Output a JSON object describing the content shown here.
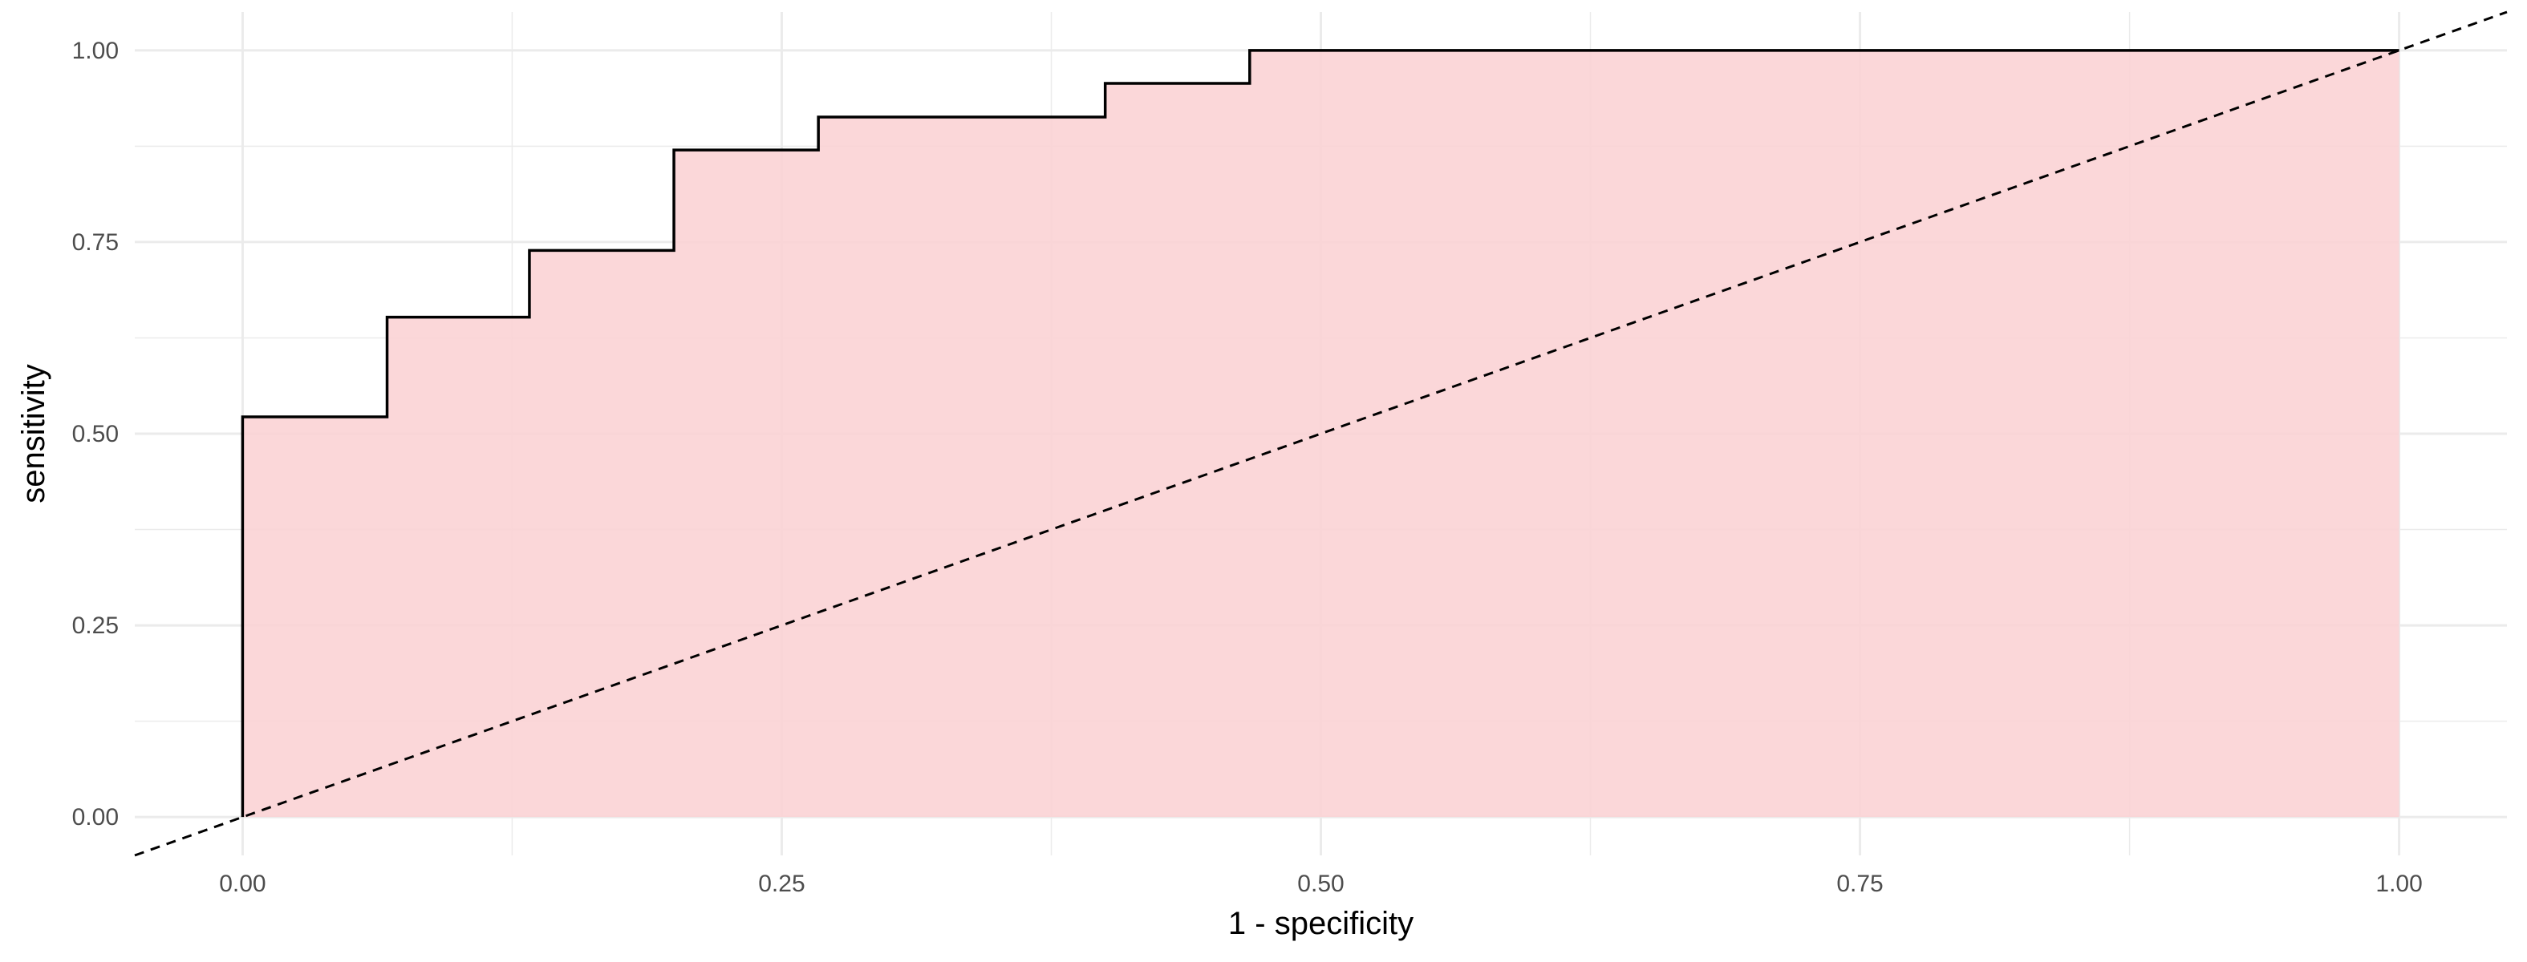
{
  "chart_data": {
    "type": "area",
    "title": "",
    "xlabel": "1 - specificity",
    "ylabel": "sensitivity",
    "xlim": [
      -0.05,
      1.05
    ],
    "ylim": [
      -0.05,
      1.05
    ],
    "x_ticks": [
      0,
      0.25,
      0.5,
      0.75,
      1
    ],
    "y_ticks": [
      0,
      0.25,
      0.5,
      0.75,
      1
    ],
    "x_tick_labels": [
      "0.00",
      "0.25",
      "0.50",
      "0.75",
      "1.00"
    ],
    "y_tick_labels": [
      "0.00",
      "0.25",
      "0.50",
      "0.75",
      "1.00"
    ],
    "grid": true,
    "series": [
      {
        "kind": "step",
        "x": [
          0,
          0,
          0.067,
          0.067,
          0.133,
          0.133,
          0.2,
          0.2,
          0.267,
          0.267,
          0.4,
          0.4,
          0.467,
          0.467,
          1
        ],
        "y": [
          0,
          0.522,
          0.522,
          0.652,
          0.652,
          0.739,
          0.739,
          0.87,
          0.87,
          0.913,
          0.913,
          0.957,
          0.957,
          1,
          1
        ]
      },
      {
        "kind": "reference-diagonal",
        "x": [
          -0.05,
          1.05
        ],
        "y": [
          -0.05,
          1.05
        ]
      }
    ],
    "colors": {
      "fill": "#fbd3d5",
      "line": "#000000",
      "reference": "#000000",
      "grid": "#ebebeb",
      "tick_text": "#4d4d4d"
    }
  }
}
